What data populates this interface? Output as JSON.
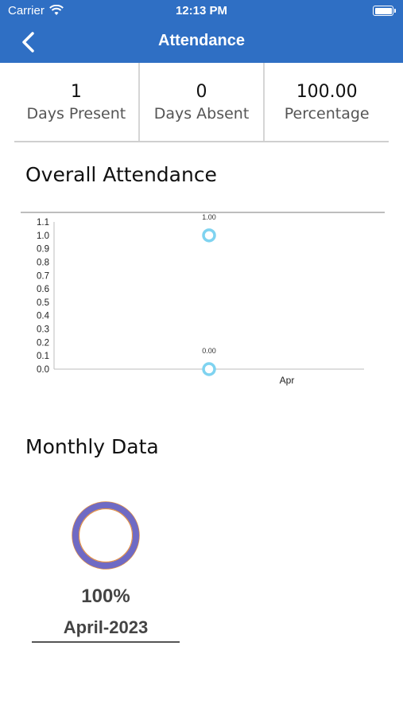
{
  "status_bar": {
    "carrier": "Carrier",
    "time": "12:13 PM"
  },
  "nav": {
    "title": "Attendance",
    "back_icon": "chevron-left-icon"
  },
  "stats": [
    {
      "value": "1",
      "label": "Days Present"
    },
    {
      "value": "0",
      "label": "Days Absent"
    },
    {
      "value": "100.00",
      "label": "Percentage"
    }
  ],
  "overall": {
    "title": "Overall Attendance"
  },
  "chart_data": {
    "type": "scatter",
    "categories": [
      "Apr"
    ],
    "series": [
      {
        "points": [
          {
            "x": "Apr",
            "y": 1.0,
            "label": "1.00"
          }
        ]
      },
      {
        "points": [
          {
            "x": "Apr",
            "y": 0.0,
            "label": "0.00"
          }
        ]
      }
    ],
    "yticks": [
      "0.0",
      "0.1",
      "0.2",
      "0.3",
      "0.4",
      "0.5",
      "0.6",
      "0.7",
      "0.8",
      "0.9",
      "1.0",
      "1.1"
    ],
    "ylim": [
      0,
      1.1
    ],
    "xlabel": "",
    "ylabel": "",
    "title": "",
    "marker_color": "#7fd3f0",
    "grid": false
  },
  "monthly": {
    "title": "Monthly Data",
    "items": [
      {
        "percent": "100%",
        "month": "April-2023",
        "fraction": 1.0
      }
    ],
    "ring_color": "#6f6ac4",
    "ring_outline_color": "#e0904a"
  }
}
